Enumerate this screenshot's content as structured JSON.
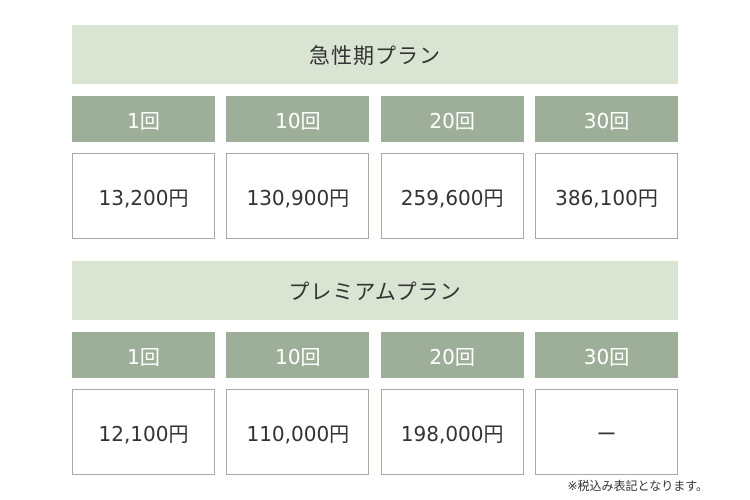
{
  "plans": [
    {
      "title": "急性期プラン",
      "counts": [
        "1回",
        "10回",
        "20回",
        "30回"
      ],
      "prices": [
        "13,200円",
        "130,900円",
        "259,600円",
        "386,100円"
      ]
    },
    {
      "title": "プレミアムプラン",
      "counts": [
        "1回",
        "10回",
        "20回",
        "30回"
      ],
      "prices": [
        "12,100円",
        "110,000円",
        "198,000円",
        "ー"
      ]
    }
  ],
  "note": "※税込み表記となります。",
  "colors": {
    "header_bg": "#d9e4d3",
    "count_bg": "#9daf98",
    "border": "#a9a9a4"
  }
}
